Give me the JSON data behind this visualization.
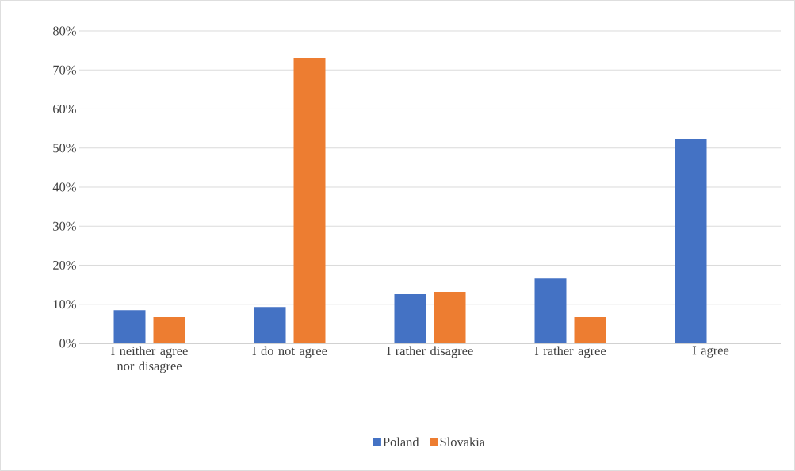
{
  "chart_data": {
    "type": "bar",
    "categories": [
      "I neither agree nor disagree",
      "I do not agree",
      "I rather disagree",
      "I rather agree",
      "I agree"
    ],
    "series": [
      {
        "name": "Poland",
        "color": "#4472c4",
        "values": [
          8.5,
          9.3,
          12.6,
          16.6,
          52.4
        ]
      },
      {
        "name": "Slovakia",
        "color": "#ed7d31",
        "values": [
          6.7,
          73.1,
          13.2,
          6.7,
          0
        ]
      }
    ],
    "ylim": [
      0,
      80
    ],
    "yticks": [
      {
        "value": 0,
        "label": "0%"
      },
      {
        "value": 10,
        "label": "10%"
      },
      {
        "value": 20,
        "label": "20%"
      },
      {
        "value": 30,
        "label": "30%"
      },
      {
        "value": 40,
        "label": "40%"
      },
      {
        "value": 50,
        "label": "50%"
      },
      {
        "value": 60,
        "label": "60%"
      },
      {
        "value": 70,
        "label": "70%"
      },
      {
        "value": 80,
        "label": "80%"
      }
    ],
    "grid": "y",
    "legend": "bottom"
  }
}
